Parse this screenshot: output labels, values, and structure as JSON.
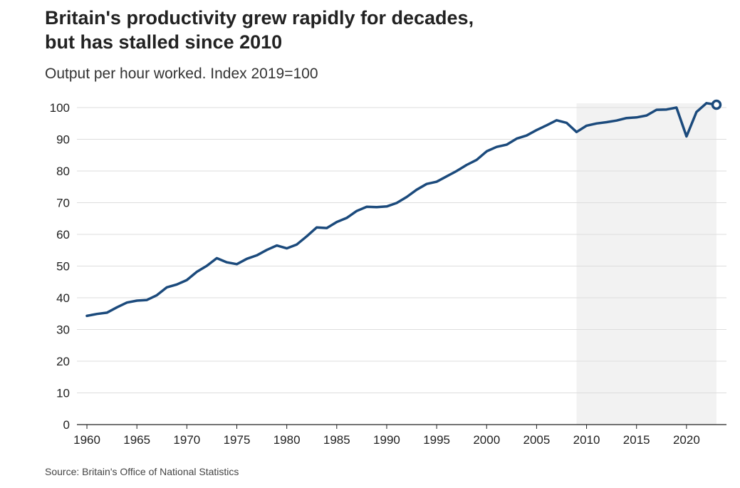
{
  "title_lines": [
    "Britain's productivity grew rapidly for decades,",
    "but has stalled since 2010"
  ],
  "subtitle": "Output per hour worked. Index 2019=100",
  "source": "Source: Britain's Office of National Statistics",
  "chart_data": {
    "type": "line",
    "title": "Britain's productivity grew rapidly for decades, but has stalled since 2010",
    "subtitle": "Output per hour worked. Index 2019=100",
    "xlabel": "",
    "ylabel": "",
    "xlim": [
      1959,
      2024
    ],
    "ylim": [
      0,
      100
    ],
    "x_ticks": [
      1960,
      1965,
      1970,
      1975,
      1980,
      1985,
      1990,
      1995,
      2000,
      2005,
      2010,
      2015,
      2020
    ],
    "y_ticks": [
      0,
      10,
      20,
      30,
      40,
      50,
      60,
      70,
      80,
      90,
      100
    ],
    "grid": "horizontal",
    "shaded_region": [
      2009,
      2023
    ],
    "colors": {
      "line": "#1b4a7c",
      "shade": "#f2f2f2",
      "grid": "#dddddd"
    },
    "last_point_marker": "open-circle",
    "series": [
      {
        "x": [
          1960,
          1961,
          1962,
          1963,
          1964,
          1965,
          1966,
          1967,
          1968,
          1969,
          1970,
          1971,
          1972,
          1973,
          1974,
          1975,
          1976,
          1977,
          1978,
          1979,
          1980,
          1981,
          1982,
          1983,
          1984,
          1985,
          1986,
          1987,
          1988,
          1989,
          1990,
          1991,
          1992,
          1993,
          1994,
          1995,
          1996,
          1997,
          1998,
          1999,
          2000,
          2001,
          2002,
          2003,
          2004,
          2005,
          2006,
          2007,
          2008,
          2009,
          2010,
          2011,
          2012,
          2013,
          2014,
          2015,
          2016,
          2017,
          2018,
          2019,
          2020,
          2021,
          2022,
          2023
        ],
        "values": [
          34.3,
          34.9,
          35.3,
          37.0,
          38.5,
          39.1,
          39.3,
          40.8,
          43.3,
          44.2,
          45.6,
          48.2,
          50.1,
          52.5,
          51.2,
          50.6,
          52.3,
          53.4,
          55.1,
          56.5,
          55.6,
          56.8,
          59.4,
          62.2,
          62.0,
          63.9,
          65.2,
          67.4,
          68.7,
          68.6,
          68.8,
          69.9,
          71.8,
          74.1,
          75.9,
          76.6,
          78.3,
          80.0,
          81.9,
          83.5,
          86.2,
          87.6,
          88.3,
          90.2,
          91.2,
          92.9,
          94.4,
          96.0,
          95.2,
          92.3,
          94.3,
          95.0,
          95.4,
          95.9,
          96.7,
          96.9,
          97.5,
          99.3,
          99.4,
          100.0,
          90.9,
          98.6,
          101.4,
          100.9
        ]
      }
    ]
  }
}
